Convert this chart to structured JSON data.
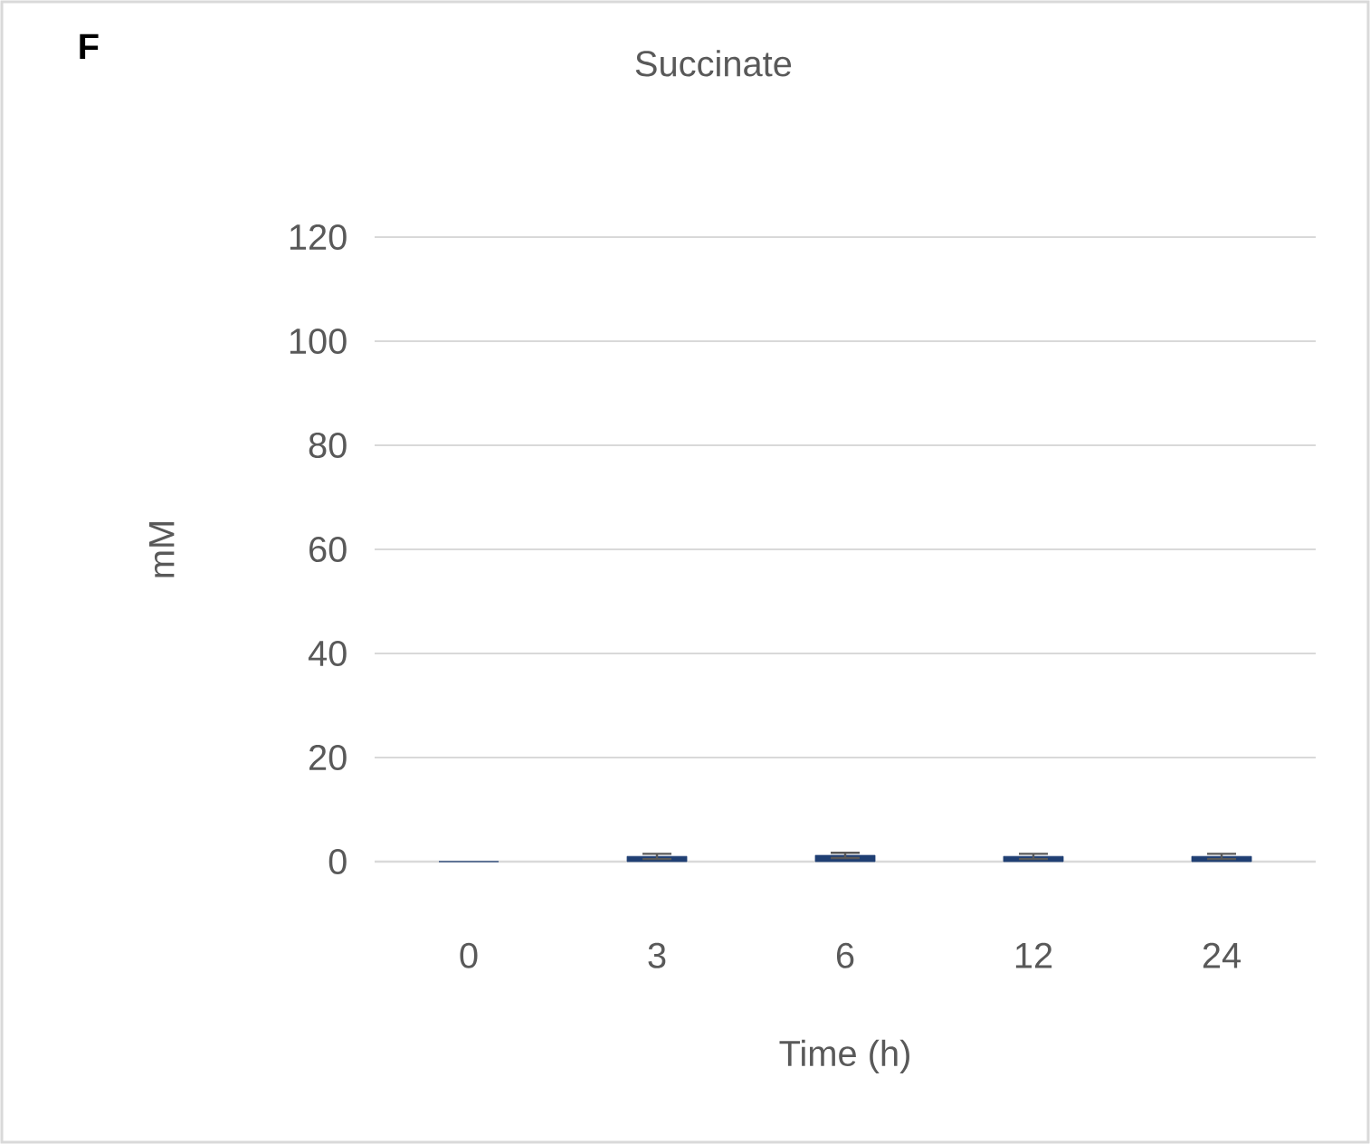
{
  "chart_data": {
    "type": "bar",
    "title": "Succinate",
    "xlabel": "Time (h)",
    "ylabel": "mM",
    "annotations": [
      "F"
    ],
    "categories": [
      "0",
      "3",
      "6",
      "12",
      "24"
    ],
    "values": [
      0,
      1.0,
      1.2,
      1.0,
      1.0
    ],
    "errors": [
      null,
      0.5,
      0.5,
      0.5,
      0.5
    ],
    "color": "#1f3f73",
    "ylim": [
      0,
      120
    ],
    "yticks": [
      0,
      20,
      40,
      60,
      80,
      100,
      120
    ],
    "grid": "y"
  }
}
